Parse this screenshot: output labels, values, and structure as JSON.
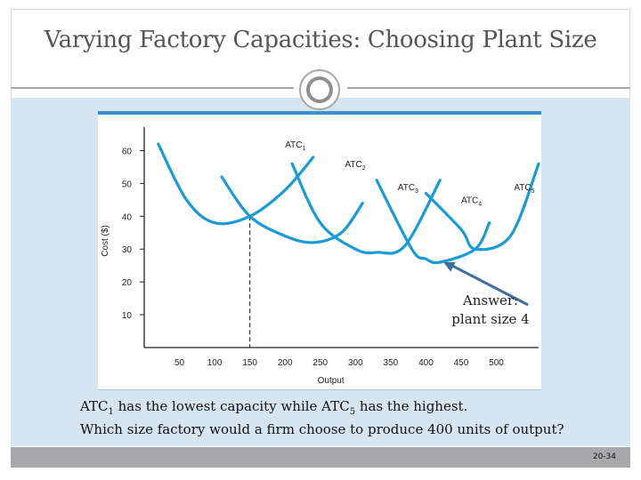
{
  "slide": {
    "title": "Varying Factory Capacities: Choosing Plant Size",
    "answer_line1": "Answer:",
    "answer_line2": "plant size 4",
    "text1_pre": "ATC",
    "text1_sub1": "1",
    "text1_mid": " has the lowest capacity while ATC",
    "text1_sub2": "5",
    "text1_post": " has the highest.",
    "text2": "Which size factory would a firm choose to produce 400 units of output?",
    "slide_number": "20-34"
  },
  "colors": {
    "content_bg": "#d5e6f2",
    "accent_blue": "#3b8fd0",
    "curve": "#1a9ad6",
    "arrow": "#3e6f9e",
    "footer": "#a9a9ab"
  },
  "chart_data": {
    "type": "line",
    "xlabel": "Output",
    "ylabel": "Cost ($)",
    "x_ticks": [
      50,
      100,
      150,
      200,
      250,
      300,
      350,
      400,
      450,
      500
    ],
    "y_ticks": [
      10,
      20,
      30,
      40,
      50,
      60
    ],
    "xlim": [
      0,
      560
    ],
    "ylim": [
      0,
      65
    ],
    "series": [
      {
        "name": "ATC1",
        "label": "ATC",
        "sub": "1",
        "x": [
          20,
          60,
          100,
          150,
          200,
          240
        ],
        "values": [
          62,
          45,
          38,
          40,
          48,
          58
        ],
        "label_at": [
          200,
          61
        ]
      },
      {
        "name": "ATC2",
        "label": "ATC",
        "sub": "2",
        "x": [
          110,
          150,
          200,
          240,
          280,
          310
        ],
        "values": [
          52,
          40,
          34,
          32,
          35,
          44
        ],
        "label_at": [
          285,
          55
        ]
      },
      {
        "name": "ATC3",
        "label": "ATC",
        "sub": "3",
        "x": [
          210,
          250,
          300,
          330,
          370,
          420
        ],
        "values": [
          56,
          38,
          30,
          29,
          31,
          51
        ],
        "label_at": [
          360,
          48
        ]
      },
      {
        "name": "ATC4",
        "label": "ATC",
        "sub": "4",
        "x": [
          330,
          380,
          400,
          420,
          470,
          490
        ],
        "values": [
          51,
          30,
          27,
          26,
          30,
          38
        ],
        "label_at": [
          450,
          44
        ]
      },
      {
        "name": "ATC5",
        "label": "ATC",
        "sub": "5",
        "x": [
          400,
          450,
          470,
          520,
          560
        ],
        "values": [
          47,
          36,
          30,
          34,
          56
        ],
        "label_at": [
          525,
          48
        ]
      }
    ],
    "reference_line": {
      "x": 150,
      "from": 0,
      "to": 40,
      "style": "dashed"
    },
    "annotation_arrow": {
      "from": [
        545,
        13
      ],
      "to": [
        425,
        26
      ]
    }
  }
}
